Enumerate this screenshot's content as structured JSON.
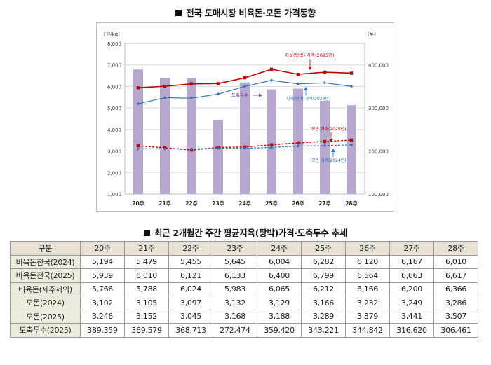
{
  "title_chart": "전국 도매시장 비육돈·모돈 가격동향",
  "title_table": "최근 2개월간 주간 평균지육(탕박)가격·도축두수 추세",
  "colors": {
    "bar": "#b7a8cf",
    "red": "#c00000",
    "blue": "#2e75b6",
    "purple": "#7030a0"
  },
  "chart_data": {
    "type": "bar+line",
    "categories": [
      "20주",
      "21주",
      "22주",
      "23주",
      "24주",
      "25주",
      "26주",
      "27주",
      "28주"
    ],
    "y_left_label": "[원/kg]",
    "y_right_label": "[두]",
    "y_left_range": [
      1000,
      8000
    ],
    "y_left_ticks": [
      "1,000",
      "2,000",
      "3,000",
      "4,000",
      "5,000",
      "6,000",
      "7,000",
      "8,000"
    ],
    "y_right_range": [
      100000,
      450000
    ],
    "y_right_ticks": [
      "100,000",
      "200,000",
      "300,000",
      "400,000"
    ],
    "series": [
      {
        "key": "bar",
        "type": "bar",
        "axis": "right",
        "values": [
          389359,
          369579,
          368713,
          272474,
          359420,
          343221,
          344842,
          316620,
          306461
        ]
      },
      {
        "key": "red_solid",
        "type": "line",
        "axis": "left",
        "values": [
          5939,
          6010,
          6121,
          6133,
          6400,
          6799,
          6564,
          6663,
          6617
        ]
      },
      {
        "key": "blue_solid",
        "type": "line",
        "axis": "left",
        "values": [
          5194,
          5479,
          5455,
          5645,
          6004,
          6282,
          6120,
          6167,
          6010
        ]
      },
      {
        "key": "red_dashed",
        "type": "line",
        "axis": "left",
        "values": [
          3246,
          3152,
          3045,
          3168,
          3188,
          3289,
          3379,
          3441,
          3507
        ]
      },
      {
        "key": "blue_dashed",
        "type": "line",
        "axis": "left",
        "values": [
          3102,
          3105,
          3097,
          3132,
          3129,
          3166,
          3232,
          3249,
          3286
        ]
      }
    ],
    "annotations": {
      "red_2025": "지육(탕박) 가격(2025년)",
      "blue_2024": "지육(탕박)가격(2024년)",
      "slaughter": "도축두수",
      "sow_2025": "모돈 가격(2025년)",
      "sow_2024": "모돈 가격(2024년)"
    }
  },
  "table": {
    "headers": [
      "구분",
      "20주",
      "21주",
      "22주",
      "23주",
      "24주",
      "25주",
      "26주",
      "27주",
      "28주"
    ],
    "rows": [
      {
        "label": "비육돈전국(2024)",
        "values": [
          "5,194",
          "5,479",
          "5,455",
          "5,645",
          "6,004",
          "6,282",
          "6,120",
          "6,167",
          "6,010"
        ]
      },
      {
        "label": "비육돈전국(2025)",
        "values": [
          "5,939",
          "6,010",
          "6,121",
          "6,133",
          "6,400",
          "6,799",
          "6,564",
          "6,663",
          "6,617"
        ]
      },
      {
        "label": "비육돈(제주제외)",
        "values": [
          "5,766",
          "5,788",
          "6,024",
          "5,983",
          "6,065",
          "6,212",
          "6,166",
          "6,200",
          "6,366"
        ]
      },
      {
        "label": "모돈(2024)",
        "values": [
          "3,102",
          "3,105",
          "3,097",
          "3,132",
          "3,129",
          "3,166",
          "3,232",
          "3,249",
          "3,286"
        ]
      },
      {
        "label": "모돈(2025)",
        "values": [
          "3,246",
          "3,152",
          "3,045",
          "3,168",
          "3,188",
          "3,289",
          "3,379",
          "3,441",
          "3,507"
        ]
      },
      {
        "label": "도축두수(2025)",
        "values": [
          "389,359",
          "369,579",
          "368,713",
          "272,474",
          "359,420",
          "343,221",
          "344,842",
          "316,620",
          "306,461"
        ]
      }
    ]
  }
}
